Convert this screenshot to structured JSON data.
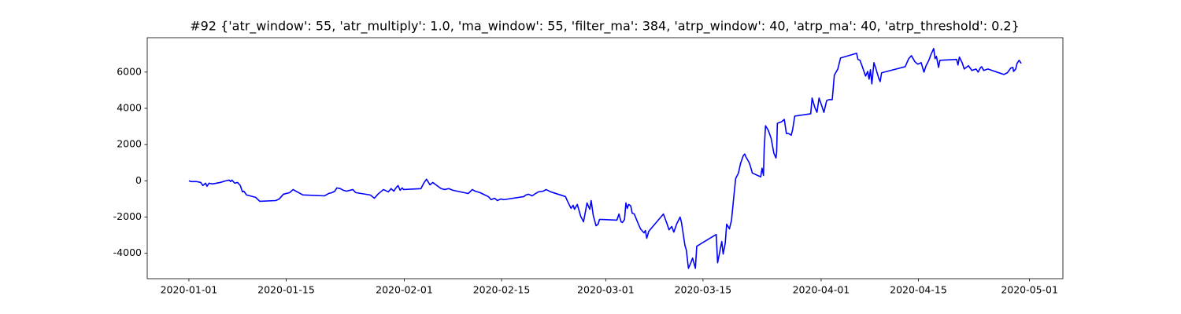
{
  "chart_data": {
    "type": "line",
    "title": "#92 {'atr_window': 55, 'atr_multiply': 1.0, 'ma_window': 55, 'filter_ma': 384, 'atrp_window': 40, 'atrp_ma': 40, 'atrp_threshold': 0.2}",
    "color": "#0000ff",
    "x": [
      0,
      0.3,
      1.1,
      1.7,
      2.0,
      2.4,
      2.6,
      2.9,
      3.4,
      4.5,
      5.3,
      5.8,
      6.0,
      6.2,
      6.6,
      7.0,
      7.4,
      7.7,
      7.9,
      8.3,
      8.8,
      9.6,
      10.2,
      12.5,
      13.0,
      13.6,
      14.5,
      15.0,
      15.4,
      16.4,
      19.5,
      20.1,
      20.6,
      21.0,
      21.3,
      21.8,
      22.2,
      22.7,
      23.6,
      24.0,
      26.1,
      26.7,
      27.2,
      28.0,
      28.7,
      29.1,
      29.5,
      29.8,
      30.1,
      30.4,
      30.7,
      30.9,
      33.4,
      33.8,
      34.2,
      34.7,
      35.1,
      35.7,
      36.3,
      36.8,
      37.4,
      38.0,
      40.2,
      40.8,
      41.2,
      41.9,
      42.6,
      43.1,
      43.5,
      44.0,
      44.4,
      44.9,
      45.3,
      48.2,
      48.5,
      48.9,
      49.4,
      49.9,
      50.3,
      51.0,
      51.4,
      52.1,
      54.2,
      54.5,
      55.0,
      55.3,
      55.5,
      55.9,
      56.4,
      56.8,
      57.1,
      57.3,
      57.7,
      57.9,
      58.2,
      58.6,
      58.9,
      59.1,
      59.5,
      61.6,
      61.9,
      62.2,
      62.4,
      62.7,
      62.9,
      63.1,
      63.3,
      63.6,
      63.8,
      64.1,
      64.6,
      65.0,
      65.5,
      65.7,
      65.9,
      66.2,
      68.3,
      68.8,
      69.1,
      69.5,
      69.8,
      70.2,
      70.7,
      70.9,
      71.4,
      71.6,
      71.9,
      72.2,
      72.5,
      72.9,
      73.1,
      75.9,
      76.1,
      76.5,
      76.7,
      76.9,
      77.2,
      77.4,
      77.6,
      77.8,
      78.1,
      78.4,
      78.7,
      79.1,
      79.4,
      79.8,
      80.0,
      80.2,
      80.6,
      80.8,
      81.1,
      82.3,
      82.5,
      82.7,
      82.8,
      83.0,
      83.4,
      83.8,
      84.2,
      84.5,
      84.6,
      84.7,
      85.3,
      85.7,
      86.0,
      86.3,
      86.7,
      86.9,
      87.2,
      89.5,
      89.7,
      90.1,
      90.4,
      90.7,
      91.1,
      91.4,
      91.8,
      92.1,
      92.6,
      92.9,
      93.4,
      93.8,
      96.1,
      96.3,
      96.6,
      97.0,
      97.2,
      97.4,
      97.7,
      97.9,
      98.1,
      98.3,
      98.6,
      98.9,
      99.3,
      99.5,
      99.7,
      103.1,
      103.6,
      104.0,
      104.5,
      104.9,
      105.4,
      105.8,
      106.1,
      106.5,
      106.8,
      107.2,
      107.4,
      107.6,
      107.9,
      108.1,
      110.5,
      110.7,
      110.9,
      111.3,
      111.6,
      112.2,
      112.7,
      113.3,
      113.6,
      113.9,
      114.1,
      114.4,
      115.0,
      117.3,
      117.8,
      118.3,
      118.6,
      118.7,
      119.0,
      119.2,
      119.5,
      119.8
    ],
    "values": [
      0,
      -40,
      -40,
      -90,
      -260,
      -130,
      -300,
      -130,
      -170,
      -90,
      0,
      40,
      -40,
      40,
      -130,
      -90,
      -260,
      -610,
      -570,
      -780,
      -830,
      -910,
      -1130,
      -1090,
      -1000,
      -740,
      -650,
      -480,
      -570,
      -780,
      -830,
      -700,
      -650,
      -570,
      -390,
      -430,
      -520,
      -570,
      -480,
      -650,
      -780,
      -960,
      -740,
      -480,
      -610,
      -430,
      -570,
      -390,
      -260,
      -520,
      -390,
      -480,
      -430,
      -130,
      90,
      -220,
      -90,
      -260,
      -430,
      -480,
      -430,
      -520,
      -700,
      -480,
      -570,
      -650,
      -780,
      -870,
      -1040,
      -960,
      -1090,
      -1000,
      -1040,
      -870,
      -780,
      -740,
      -830,
      -700,
      -610,
      -570,
      -480,
      -610,
      -870,
      -1130,
      -1520,
      -1350,
      -1570,
      -1300,
      -1960,
      -2260,
      -1650,
      -1220,
      -1570,
      -1090,
      -1910,
      -2480,
      -2390,
      -2130,
      -2130,
      -2170,
      -1830,
      -2260,
      -2300,
      -2130,
      -1220,
      -1520,
      -1300,
      -1390,
      -1780,
      -1830,
      -2300,
      -2650,
      -2870,
      -2740,
      -3170,
      -2780,
      -1830,
      -2350,
      -2700,
      -2520,
      -2830,
      -2390,
      -2000,
      -2300,
      -3570,
      -3830,
      -4830,
      -4570,
      -4260,
      -4830,
      -3610,
      -2960,
      -4520,
      -3740,
      -3350,
      -4040,
      -3440,
      -2390,
      -2520,
      -2650,
      -2170,
      -1000,
      130,
      430,
      960,
      1390,
      1480,
      1300,
      1040,
      830,
      430,
      220,
      700,
      300,
      1740,
      3040,
      2780,
      2350,
      1520,
      1260,
      1610,
      3170,
      3260,
      3390,
      2610,
      2610,
      2520,
      2830,
      3570,
      3700,
      4570,
      4040,
      3780,
      4570,
      4130,
      3780,
      4430,
      4480,
      4480,
      5830,
      6170,
      6780,
      7040,
      6700,
      6650,
      6220,
      6000,
      5780,
      6040,
      5610,
      6130,
      5350,
      6520,
      6170,
      5650,
      5480,
      5960,
      6300,
      6740,
      6910,
      6570,
      6440,
      6520,
      6000,
      6350,
      6650,
      6960,
      7300,
      6740,
      6870,
      6260,
      6650,
      6700,
      6390,
      6830,
      6520,
      6170,
      6350,
      6090,
      6170,
      6000,
      6220,
      6300,
      6090,
      6170,
      5870,
      5960,
      6220,
      6260,
      6040,
      6170,
      6480,
      6650,
      6480
    ],
    "xlim": [
      -6,
      125.8
    ],
    "xticks": [
      {
        "value": 0,
        "label": "2020-01-01"
      },
      {
        "value": 14,
        "label": "2020-01-15"
      },
      {
        "value": 31,
        "label": "2020-02-01"
      },
      {
        "value": 45,
        "label": "2020-02-15"
      },
      {
        "value": 60,
        "label": "2020-03-01"
      },
      {
        "value": 74,
        "label": "2020-03-15"
      },
      {
        "value": 91,
        "label": "2020-04-01"
      },
      {
        "value": 105,
        "label": "2020-04-15"
      },
      {
        "value": 121,
        "label": "2020-05-01"
      }
    ],
    "ylim": [
      -5400,
      7900
    ],
    "yticks": [
      -4000,
      -2000,
      0,
      2000,
      4000,
      6000
    ],
    "grid": false
  }
}
